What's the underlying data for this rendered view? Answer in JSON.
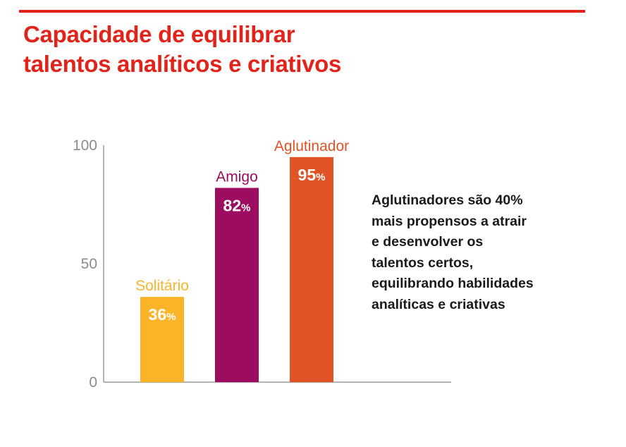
{
  "header": {
    "title_lines": [
      "Capacidade de equilibrar",
      "talentos analíticos e criativos"
    ]
  },
  "annotation": {
    "lines": [
      "Aglutinadores são 40%",
      "mais propensos a atrair",
      "e desenvolver os",
      "talentos certos,",
      "equilibrando habilidades",
      "analíticas e criativas"
    ]
  },
  "colors": {
    "accent": "#e2231a",
    "axis": "#9b9b9b",
    "tick_text": "#8c8c8c",
    "value_text": "#ffffff"
  },
  "chart_data": {
    "type": "bar",
    "categories": [
      "Solitário",
      "Amigo",
      "Aglutinador"
    ],
    "values": [
      36,
      82,
      95
    ],
    "value_suffix": "%",
    "colors": [
      "#fbb428",
      "#9c0c5f",
      "#e05325"
    ],
    "title": "",
    "xlabel": "",
    "ylabel": "",
    "ylim": [
      0,
      100
    ],
    "yticks": [
      0,
      50,
      100
    ],
    "grid": false,
    "legend": "none"
  }
}
